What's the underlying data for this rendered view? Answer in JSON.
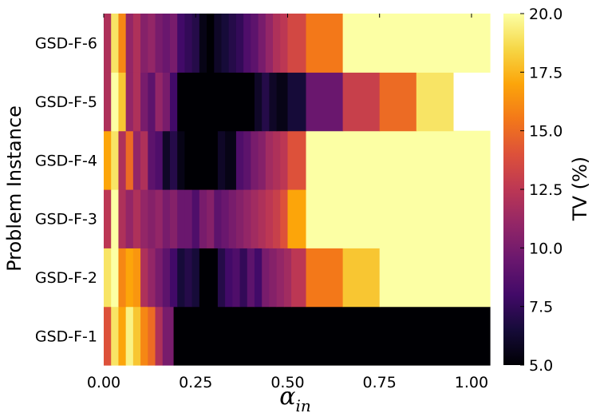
{
  "chart_data": {
    "type": "heatmap",
    "title": "",
    "xlabel_main": "α",
    "xlabel_sub": "in",
    "ylabel": "Problem Instance",
    "colorbar_label": "TV (%)",
    "colormap": "inferno",
    "clim": [
      5.0,
      20.0
    ],
    "xlim": [
      0.0,
      1.05
    ],
    "xticks": [
      0.0,
      0.25,
      0.5,
      0.75,
      1.0
    ],
    "xtick_labels": [
      "0.00",
      "0.25",
      "0.50",
      "0.75",
      "1.00"
    ],
    "colorbar_ticks": [
      5.0,
      7.5,
      10.0,
      12.5,
      15.0,
      17.5,
      20.0
    ],
    "colorbar_tick_labels": [
      "5.0",
      "7.5",
      "10.0",
      "12.5",
      "15.0",
      "17.5",
      "20.0"
    ],
    "rows": [
      {
        "label": "GSD-F-1",
        "segments": [
          [
            0.0,
            0.02,
            14
          ],
          [
            0.02,
            0.04,
            19
          ],
          [
            0.04,
            0.06,
            17
          ],
          [
            0.06,
            0.08,
            19.5
          ],
          [
            0.08,
            0.1,
            18
          ],
          [
            0.1,
            0.12,
            16
          ],
          [
            0.12,
            0.14,
            15
          ],
          [
            0.14,
            0.16,
            12
          ],
          [
            0.16,
            0.19,
            10
          ],
          [
            0.19,
            1.05,
            5
          ]
        ]
      },
      {
        "label": "GSD-F-2",
        "segments": [
          [
            0.0,
            0.02,
            19
          ],
          [
            0.02,
            0.04,
            20
          ],
          [
            0.04,
            0.06,
            16
          ],
          [
            0.06,
            0.08,
            17
          ],
          [
            0.08,
            0.1,
            16.5
          ],
          [
            0.1,
            0.12,
            12
          ],
          [
            0.12,
            0.14,
            11
          ],
          [
            0.14,
            0.16,
            10
          ],
          [
            0.16,
            0.18,
            9
          ],
          [
            0.18,
            0.2,
            8
          ],
          [
            0.2,
            0.22,
            6.5
          ],
          [
            0.22,
            0.24,
            7
          ],
          [
            0.24,
            0.26,
            6.5
          ],
          [
            0.26,
            0.31,
            5
          ],
          [
            0.31,
            0.33,
            7
          ],
          [
            0.33,
            0.35,
            8
          ],
          [
            0.35,
            0.37,
            8.5
          ],
          [
            0.37,
            0.39,
            7.5
          ],
          [
            0.39,
            0.41,
            9
          ],
          [
            0.41,
            0.43,
            8
          ],
          [
            0.43,
            0.45,
            10
          ],
          [
            0.45,
            0.47,
            10.5
          ],
          [
            0.47,
            0.49,
            11
          ],
          [
            0.49,
            0.51,
            11.5
          ],
          [
            0.51,
            0.55,
            12.5
          ],
          [
            0.55,
            0.65,
            15.5
          ],
          [
            0.65,
            0.75,
            18
          ],
          [
            0.75,
            1.05,
            20
          ]
        ]
      },
      {
        "label": "GSD-F-3",
        "segments": [
          [
            0.0,
            0.02,
            12.5
          ],
          [
            0.02,
            0.04,
            20
          ],
          [
            0.04,
            0.06,
            12
          ],
          [
            0.06,
            0.08,
            11
          ],
          [
            0.08,
            0.1,
            12
          ],
          [
            0.1,
            0.12,
            11
          ],
          [
            0.12,
            0.14,
            10.5
          ],
          [
            0.14,
            0.16,
            11
          ],
          [
            0.16,
            0.18,
            10
          ],
          [
            0.18,
            0.2,
            10.5
          ],
          [
            0.2,
            0.22,
            9.5
          ],
          [
            0.22,
            0.24,
            9.5
          ],
          [
            0.24,
            0.26,
            8.5
          ],
          [
            0.26,
            0.28,
            10
          ],
          [
            0.28,
            0.3,
            10.5
          ],
          [
            0.3,
            0.32,
            9
          ],
          [
            0.32,
            0.34,
            9.5
          ],
          [
            0.34,
            0.36,
            10
          ],
          [
            0.36,
            0.38,
            10.5
          ],
          [
            0.38,
            0.4,
            11
          ],
          [
            0.4,
            0.42,
            11.5
          ],
          [
            0.42,
            0.44,
            12
          ],
          [
            0.44,
            0.46,
            12.5
          ],
          [
            0.46,
            0.48,
            13
          ],
          [
            0.48,
            0.5,
            14
          ],
          [
            0.5,
            0.55,
            17
          ],
          [
            0.55,
            1.05,
            20
          ]
        ]
      },
      {
        "label": "GSD-F-4",
        "segments": [
          [
            0.0,
            0.02,
            17
          ],
          [
            0.02,
            0.04,
            19
          ],
          [
            0.04,
            0.06,
            12
          ],
          [
            0.06,
            0.08,
            15
          ],
          [
            0.08,
            0.1,
            11
          ],
          [
            0.1,
            0.12,
            12
          ],
          [
            0.12,
            0.14,
            9
          ],
          [
            0.14,
            0.16,
            8.5
          ],
          [
            0.16,
            0.18,
            6
          ],
          [
            0.18,
            0.2,
            7
          ],
          [
            0.2,
            0.22,
            5.5
          ],
          [
            0.22,
            0.31,
            5
          ],
          [
            0.31,
            0.33,
            6
          ],
          [
            0.33,
            0.36,
            5.5
          ],
          [
            0.36,
            0.38,
            8.5
          ],
          [
            0.38,
            0.4,
            9
          ],
          [
            0.4,
            0.42,
            10
          ],
          [
            0.42,
            0.44,
            10.5
          ],
          [
            0.44,
            0.46,
            11.5
          ],
          [
            0.46,
            0.48,
            12
          ],
          [
            0.48,
            0.5,
            12.5
          ],
          [
            0.5,
            0.55,
            14
          ],
          [
            0.55,
            1.05,
            20
          ]
        ]
      },
      {
        "label": "GSD-F-5",
        "segments": [
          [
            0.0,
            0.02,
            12
          ],
          [
            0.02,
            0.04,
            20
          ],
          [
            0.04,
            0.06,
            18
          ],
          [
            0.06,
            0.08,
            11
          ],
          [
            0.08,
            0.1,
            12
          ],
          [
            0.1,
            0.12,
            10
          ],
          [
            0.12,
            0.14,
            9
          ],
          [
            0.14,
            0.16,
            11
          ],
          [
            0.16,
            0.18,
            10
          ],
          [
            0.18,
            0.2,
            8
          ],
          [
            0.2,
            0.41,
            5
          ],
          [
            0.41,
            0.43,
            6
          ],
          [
            0.43,
            0.45,
            7
          ],
          [
            0.45,
            0.47,
            6
          ],
          [
            0.47,
            0.5,
            5.5
          ],
          [
            0.5,
            0.55,
            6.5
          ],
          [
            0.55,
            0.65,
            9.5
          ],
          [
            0.65,
            0.75,
            13
          ],
          [
            0.75,
            0.85,
            15
          ],
          [
            0.85,
            0.95,
            19
          ]
        ]
      },
      {
        "label": "GSD-F-6",
        "segments": [
          [
            0.0,
            0.02,
            12
          ],
          [
            0.02,
            0.04,
            19
          ],
          [
            0.04,
            0.06,
            16
          ],
          [
            0.06,
            0.08,
            11
          ],
          [
            0.08,
            0.1,
            12
          ],
          [
            0.1,
            0.12,
            10.5
          ],
          [
            0.12,
            0.14,
            11
          ],
          [
            0.14,
            0.16,
            10
          ],
          [
            0.16,
            0.18,
            9.5
          ],
          [
            0.18,
            0.2,
            10
          ],
          [
            0.2,
            0.22,
            8
          ],
          [
            0.22,
            0.24,
            7.5
          ],
          [
            0.24,
            0.26,
            7
          ],
          [
            0.26,
            0.28,
            5.5
          ],
          [
            0.28,
            0.3,
            5
          ],
          [
            0.3,
            0.32,
            6
          ],
          [
            0.32,
            0.34,
            6.5
          ],
          [
            0.34,
            0.36,
            7
          ],
          [
            0.36,
            0.38,
            7.5
          ],
          [
            0.38,
            0.4,
            8.5
          ],
          [
            0.4,
            0.42,
            9
          ],
          [
            0.42,
            0.44,
            10
          ],
          [
            0.44,
            0.46,
            11
          ],
          [
            0.46,
            0.48,
            12
          ],
          [
            0.48,
            0.5,
            12.5
          ],
          [
            0.5,
            0.55,
            13.5
          ],
          [
            0.55,
            0.65,
            15.5
          ],
          [
            0.65,
            1.05,
            20
          ]
        ]
      }
    ]
  }
}
